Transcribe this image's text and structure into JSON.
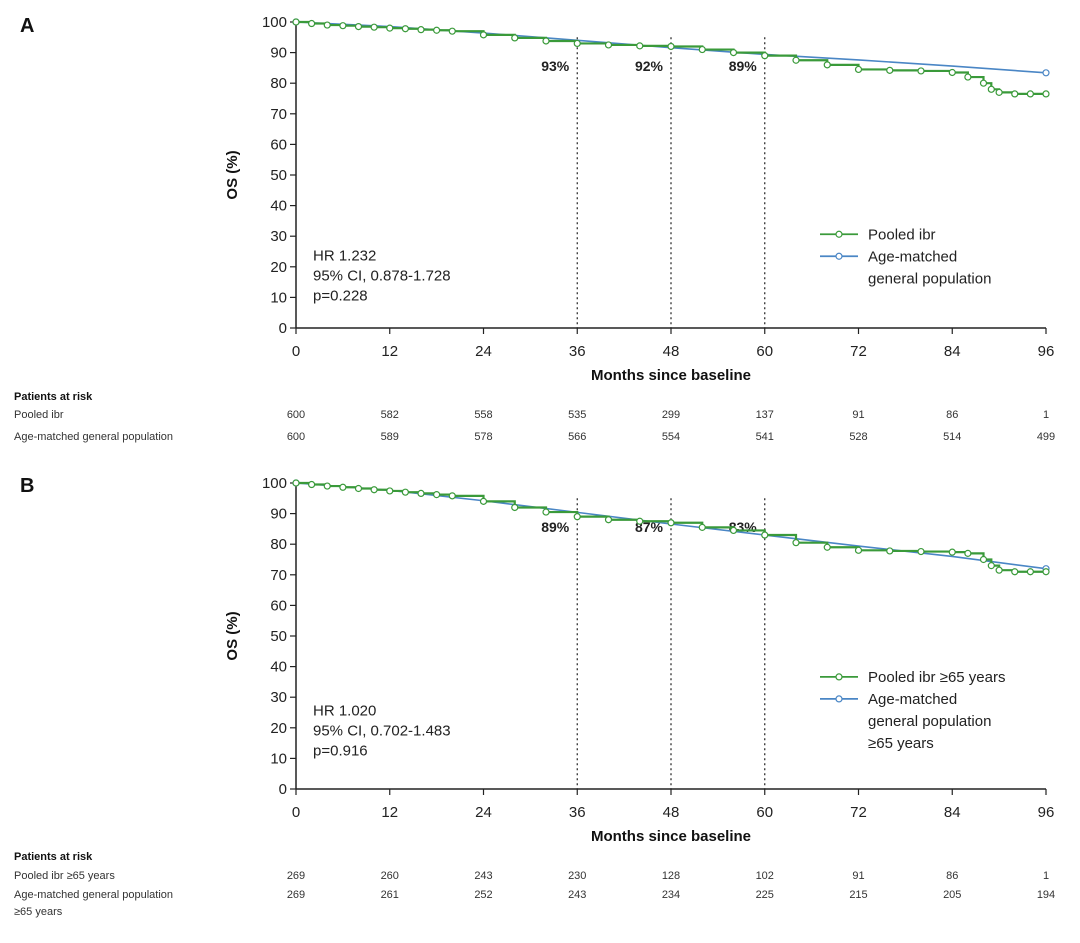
{
  "chart_data": [
    {
      "type": "line",
      "panel": "A",
      "xlabel": "Months since baseline",
      "ylabel": "OS (%)",
      "xlim": [
        0,
        96
      ],
      "ylim": [
        0,
        100
      ],
      "xticks": [
        0,
        12,
        24,
        36,
        48,
        60,
        72,
        84,
        96
      ],
      "yticks": [
        0,
        10,
        20,
        30,
        40,
        50,
        60,
        70,
        80,
        90,
        100
      ],
      "series": [
        {
          "name": "Pooled ibr",
          "color": "#3a9a3a",
          "x": [
            0,
            2,
            4,
            6,
            8,
            10,
            12,
            14,
            16,
            18,
            20,
            24,
            28,
            32,
            36,
            40,
            44,
            48,
            52,
            56,
            60,
            64,
            68,
            72,
            76,
            80,
            84,
            86,
            88,
            89,
            90,
            92,
            94,
            96
          ],
          "y": [
            100,
            99.5,
            99,
            98.8,
            98.5,
            98.3,
            98,
            97.8,
            97.5,
            97.3,
            97,
            95.8,
            94.8,
            93.8,
            93,
            92.5,
            92.2,
            92,
            91,
            90,
            89,
            87.5,
            86,
            84.5,
            84.2,
            84,
            83.5,
            82,
            80,
            78,
            77,
            76.5,
            76.5,
            76.5
          ]
        },
        {
          "name": "Age-matched general population",
          "color": "#4a86c5",
          "x": [
            0,
            12,
            24,
            36,
            48,
            60,
            72,
            84,
            96
          ],
          "y": [
            100,
            98.5,
            96.4,
            94,
            91.6,
            89.4,
            87.6,
            85.6,
            83.4
          ]
        }
      ],
      "annotations": [
        {
          "x": 36,
          "label": "93%"
        },
        {
          "x": 48,
          "label": "92%"
        },
        {
          "x": 60,
          "label": "89%"
        }
      ],
      "legend": [
        "Pooled ibr",
        "Age-matched",
        "general population"
      ],
      "stats": [
        "HR 1.232",
        "95% CI, 0.878-1.728",
        "p=0.228"
      ],
      "risk_table": {
        "title": "Patients at risk",
        "rows": [
          {
            "label": "Pooled ibr",
            "values": [
              "600",
              "582",
              "558",
              "535",
              "299",
              "137",
              "91",
              "86",
              "1"
            ]
          },
          {
            "label": "Age-matched general population",
            "values": [
              "600",
              "589",
              "578",
              "566",
              "554",
              "541",
              "528",
              "514",
              "499"
            ]
          }
        ]
      }
    },
    {
      "type": "line",
      "panel": "B",
      "xlabel": "Months since baseline",
      "ylabel": "OS (%)",
      "xlim": [
        0,
        96
      ],
      "ylim": [
        0,
        100
      ],
      "xticks": [
        0,
        12,
        24,
        36,
        48,
        60,
        72,
        84,
        96
      ],
      "yticks": [
        0,
        10,
        20,
        30,
        40,
        50,
        60,
        70,
        80,
        90,
        100
      ],
      "series": [
        {
          "name": "Pooled ibr ≥65 years",
          "color": "#3a9a3a",
          "x": [
            0,
            2,
            4,
            6,
            8,
            10,
            12,
            14,
            16,
            18,
            20,
            24,
            28,
            32,
            36,
            40,
            44,
            48,
            52,
            56,
            60,
            64,
            68,
            72,
            76,
            80,
            84,
            86,
            88,
            89,
            90,
            92,
            94,
            96
          ],
          "y": [
            100,
            99.5,
            99,
            98.6,
            98.2,
            97.8,
            97.4,
            97,
            96.6,
            96.2,
            95.8,
            94,
            92,
            90.5,
            89,
            88,
            87.5,
            87,
            85.5,
            84.5,
            83,
            80.5,
            79,
            78,
            77.8,
            77.6,
            77.4,
            77,
            75,
            73,
            71.5,
            71,
            71,
            71
          ]
        },
        {
          "name": "Age-matched general population ≥65 years",
          "color": "#4a86c5",
          "x": [
            0,
            12,
            24,
            36,
            48,
            60,
            72,
            84,
            96
          ],
          "y": [
            100,
            97.6,
            94.2,
            90.4,
            86.6,
            83,
            79.4,
            76,
            72
          ]
        }
      ],
      "annotations": [
        {
          "x": 36,
          "label": "89%"
        },
        {
          "x": 48,
          "label": "87%"
        },
        {
          "x": 60,
          "label": "83%"
        }
      ],
      "legend": [
        "Pooled ibr ≥65 years",
        "Age-matched",
        "general population",
        "≥65 years"
      ],
      "stats": [
        "HR 1.020",
        "95% CI, 0.702-1.483",
        "p=0.916"
      ],
      "risk_table": {
        "title": "Patients at risk",
        "rows": [
          {
            "label": "Pooled ibr ≥65 years",
            "values": [
              "269",
              "260",
              "243",
              "230",
              "128",
              "102",
              "91",
              "86",
              "1"
            ]
          },
          {
            "label": "Age-matched general population",
            "label2": "≥65 years",
            "values": [
              "269",
              "261",
              "252",
              "243",
              "234",
              "225",
              "215",
              "205",
              "194"
            ]
          }
        ]
      }
    }
  ]
}
